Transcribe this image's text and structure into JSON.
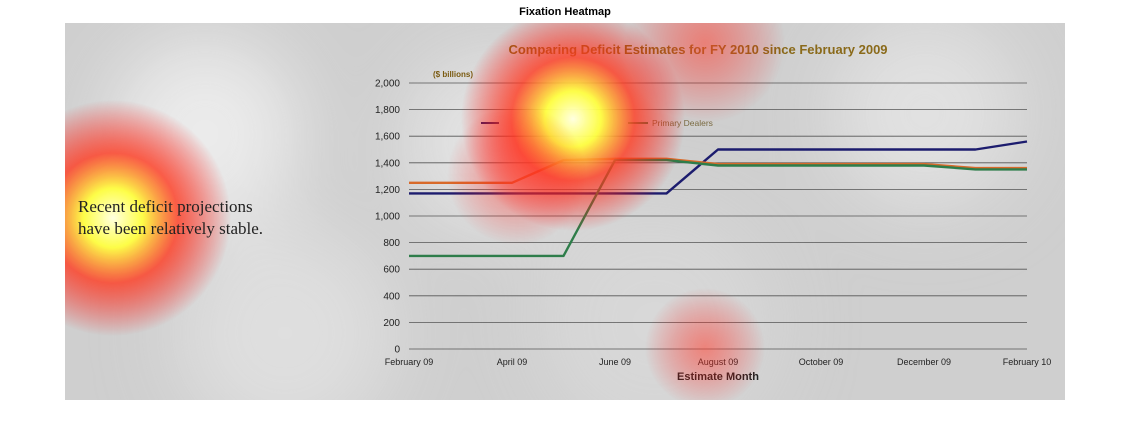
{
  "figure": {
    "title": "Fixation Heatmap"
  },
  "side_text": "Recent deficit projections have been relatively stable.",
  "colors": {
    "panel_bg": "#cfcfcf",
    "cbo": "#1c1c6e",
    "omb": "#d86a2a",
    "primary_dealers": "#2e7d4a",
    "heat_hot": "#ffff60",
    "heat_mid": "#ff2020"
  },
  "chart_data": {
    "type": "line",
    "title": "Comparing Deficit Estimates for FY 2010 since February 2009",
    "unit_label": "($ billions)",
    "xlabel": "Estimate Month",
    "ylabel": "",
    "ylim": [
      0,
      2000
    ],
    "y_ticks": [
      "0",
      "200",
      "400",
      "600",
      "800",
      "1,000",
      "1,200",
      "1,400",
      "1,600",
      "1,800",
      "2,000"
    ],
    "x_ticks": [
      "February 09",
      "April 09",
      "June 09",
      "August 09",
      "October 09",
      "December 09",
      "February 10"
    ],
    "grid": "horizontal",
    "legend_visible": [
      "Primary Dealers"
    ],
    "series": [
      {
        "name": "",
        "color_key": "cbo",
        "x": [
          "February 09",
          "March 09",
          "April 09",
          "May 09",
          "June 09",
          "July 09",
          "August 09",
          "September 09",
          "October 09",
          "November 09",
          "December 09",
          "January 10",
          "February 10"
        ],
        "values": [
          1170,
          1170,
          1170,
          1170,
          1170,
          1170,
          1500,
          1500,
          1500,
          1500,
          1500,
          1500,
          1560
        ]
      },
      {
        "name": "",
        "color_key": "omb",
        "x": [
          "February 09",
          "March 09",
          "April 09",
          "May 09",
          "June 09",
          "July 09",
          "August 09",
          "September 09",
          "October 09",
          "November 09",
          "December 09",
          "January 10",
          "February 10"
        ],
        "values": [
          1250,
          1250,
          1250,
          1420,
          1430,
          1430,
          1390,
          1390,
          1390,
          1390,
          1390,
          1360,
          1360
        ]
      },
      {
        "name": "Primary Dealers",
        "color_key": "primary_dealers",
        "x": [
          "February 09",
          "March 09",
          "April 09",
          "May 09",
          "June 09",
          "July 09",
          "August 09",
          "September 09",
          "October 09",
          "November 09",
          "December 09",
          "January 10",
          "February 10"
        ],
        "values": [
          700,
          700,
          700,
          700,
          1420,
          1420,
          1380,
          1380,
          1380,
          1380,
          1380,
          1350,
          1350
        ]
      }
    ]
  }
}
